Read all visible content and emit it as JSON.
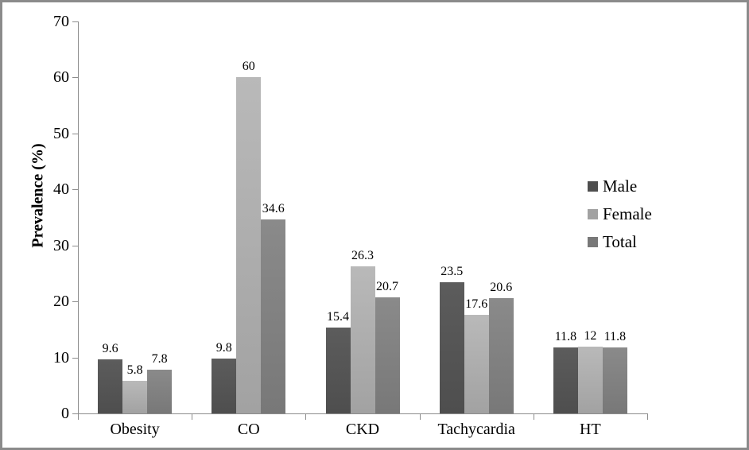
{
  "chart_data": {
    "type": "bar",
    "title": "",
    "ylabel": "Prevalence (%)",
    "xlabel": "",
    "ylim": [
      0,
      70
    ],
    "yticks": [
      0,
      10,
      20,
      30,
      40,
      50,
      60,
      70
    ],
    "categories": [
      "Obesity",
      "CO",
      "CKD",
      "Tachycardia",
      "HT"
    ],
    "series": [
      {
        "name": "Male",
        "color": "#4e4e4e",
        "color_light": "#5c5c5c",
        "values": [
          9.6,
          9.8,
          15.4,
          23.5,
          11.8
        ]
      },
      {
        "name": "Female",
        "color": "#a2a2a2",
        "color_light": "#b9b9b9",
        "values": [
          5.8,
          60,
          26.3,
          17.6,
          12
        ]
      },
      {
        "name": "Total",
        "color": "#787878",
        "color_light": "#8a8a8a",
        "values": [
          7.8,
          34.6,
          20.7,
          20.6,
          11.8
        ]
      }
    ],
    "legend_position": "right",
    "grid": false,
    "data_labels": true,
    "axis_color": "#8c8c8c",
    "text_color": "#000000",
    "background": "#ffffff",
    "border_color": "#8b8b8b"
  }
}
